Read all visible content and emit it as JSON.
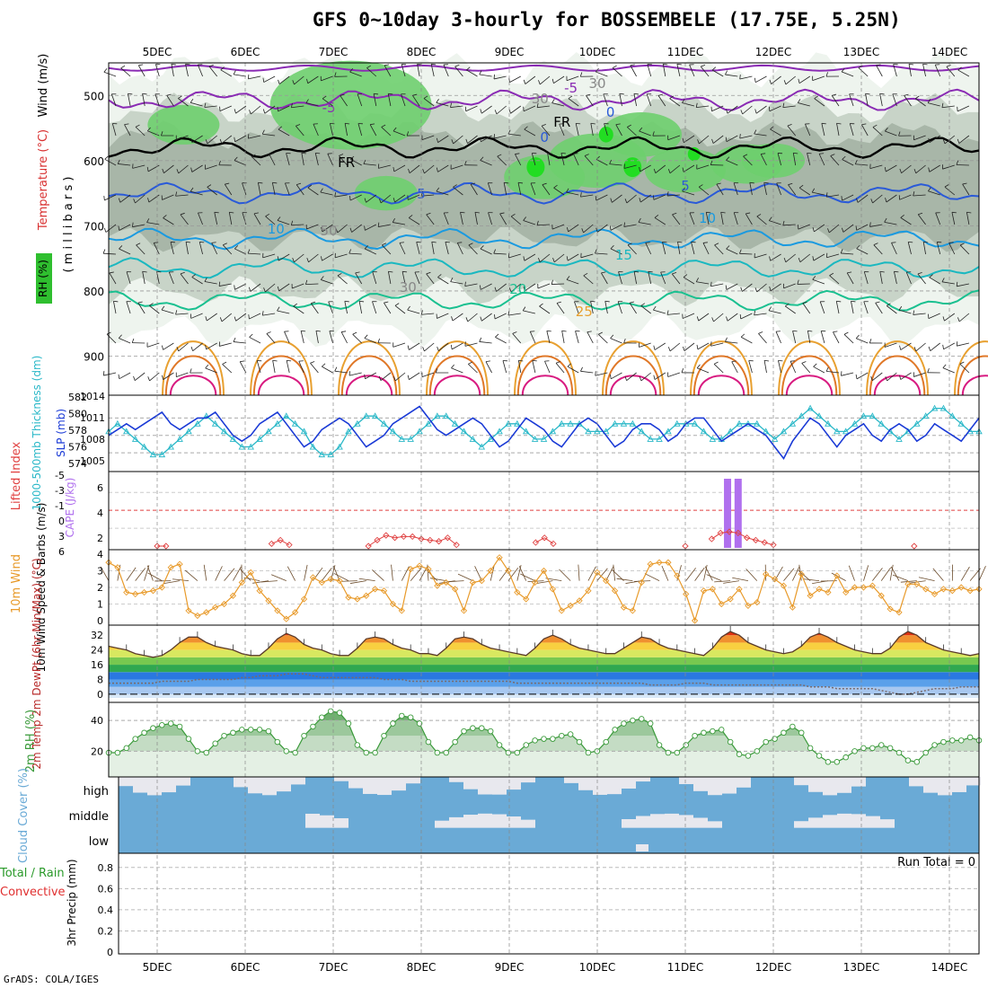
{
  "title": "GFS 0~10day 3-hourly for BOSSEMBELE (17.75E, 5.25N)",
  "credit": "GrADS: COLA/IGES",
  "colors": {
    "rh_light": "#eef4ee",
    "rh_mid": "#c8d4c8",
    "rh_dark": "#a8b6a8",
    "rh_green": "#6ecf6e",
    "rh_bright": "#22dd22",
    "sky": "#6aaad6",
    "sky_gap": "#e8e8ee",
    "slp": "#1a3ad6",
    "thick": "#2ab8c8",
    "cape": "#b070ee",
    "li": "#e04040",
    "wind10": "#e89a2a",
    "rh2m": "#3a9a3a"
  },
  "chart_data": {
    "type": "line",
    "x_labels": [
      "5DEC",
      "6DEC",
      "7DEC",
      "8DEC",
      "9DEC",
      "10DEC",
      "11DEC",
      "12DEC",
      "13DEC",
      "14DEC"
    ],
    "panels": {
      "upper_air": {
        "ylabel_wind": "Wind (m/s)",
        "ylabel_temp": "Temperature (°C)",
        "ylabel_rh": "RH (%)",
        "ylabel_p": "( m i l l i b a r s )",
        "y_ticks": [
          "500",
          "600",
          "700",
          "800",
          "900"
        ],
        "contour_labels": [
          "-5",
          "-5",
          "FR",
          "FR",
          "0",
          "0",
          "5",
          "5",
          "10",
          "10",
          "15",
          "20",
          "25",
          "30",
          "30",
          "50",
          "30"
        ],
        "isotherm_levels_mb": [
          {
            "label": "-5",
            "p": 507
          },
          {
            "label": "0 (FR)",
            "p": 580
          },
          {
            "label": "5",
            "p": 650
          },
          {
            "label": "10",
            "p": 720
          },
          {
            "label": "15",
            "p": 765
          },
          {
            "label": "20",
            "p": 815
          }
        ]
      },
      "slp_thickness": {
        "ylabel_left": "1000-500mb Thickness (dm)",
        "ylabel_right": "SLP (mb)",
        "left_ticks": [
          "582",
          "580",
          "578",
          "576",
          "574"
        ],
        "right_ticks": [
          "1014",
          "1011",
          "1008",
          "1005"
        ],
        "slp_range": [
          1003,
          1014
        ],
        "slp": [
          1008,
          1009,
          1010,
          1009,
          1010,
          1011,
          1012,
          1010,
          1009,
          1010,
          1011,
          1011,
          1012,
          1010,
          1008,
          1007,
          1008,
          1010,
          1011,
          1012,
          1010,
          1008,
          1006,
          1007,
          1009,
          1010,
          1011,
          1010,
          1008,
          1006,
          1007,
          1008,
          1010,
          1011,
          1012,
          1013,
          1011,
          1009,
          1008,
          1009,
          1010,
          1011,
          1010,
          1008,
          1006,
          1007,
          1009,
          1011,
          1010,
          1009,
          1007,
          1006,
          1008,
          1010,
          1011,
          1010,
          1008,
          1006,
          1007,
          1009,
          1010,
          1010,
          1009,
          1007,
          1008,
          1010,
          1011,
          1011,
          1009,
          1007,
          1008,
          1009,
          1010,
          1009,
          1008,
          1006,
          1004,
          1007,
          1009,
          1011,
          1010,
          1008,
          1006,
          1008,
          1009,
          1010,
          1008,
          1007,
          1009,
          1010,
          1009,
          1007,
          1008,
          1010,
          1009,
          1008,
          1007,
          1009,
          1011
        ],
        "thickness_range": [
          573.5,
          582
        ],
        "thickness": [
          578,
          579,
          578,
          577,
          576,
          575,
          575,
          576,
          577,
          578,
          579,
          580,
          579,
          578,
          577,
          576,
          576,
          577,
          578,
          579,
          580,
          579,
          578,
          576,
          575,
          575,
          576,
          578,
          579,
          580,
          580,
          579,
          578,
          577,
          577,
          578,
          579,
          580,
          580,
          579,
          578,
          577,
          576,
          577,
          578,
          579,
          579,
          578,
          577,
          577,
          578,
          579,
          579,
          579,
          578,
          578,
          578,
          579,
          579,
          579,
          578,
          577,
          577,
          578,
          579,
          579,
          579,
          578,
          577,
          577,
          578,
          579,
          579,
          579,
          578,
          577,
          578,
          579,
          580,
          581,
          580,
          579,
          578,
          578,
          579,
          580,
          580,
          579,
          578,
          577,
          578,
          579,
          580,
          581,
          581,
          580,
          579,
          578,
          578
        ],
        "thickness_series_name": "1000-500mb Thickness",
        "slp_series_name": "SLP"
      },
      "cape_li": {
        "ylabel_left": "Lifted Index",
        "ylabel_right": "CAPE (J/kg)",
        "li_ticks": [
          "-5",
          "-3",
          "-1",
          "0",
          "3",
          "6"
        ],
        "cape_ticks": [
          "6",
          "4",
          "2"
        ],
        "cape_bars": [
          {
            "day_index": 6.48,
            "height_frac": 1.0
          },
          {
            "day_index": 6.6,
            "height_frac": 1.0
          }
        ],
        "li_points": [
          [
            0.0,
            6
          ],
          [
            0.1,
            6
          ],
          [
            1.3,
            5.6
          ],
          [
            1.4,
            5
          ],
          [
            1.5,
            5.8
          ],
          [
            2.4,
            6
          ],
          [
            2.5,
            5
          ],
          [
            2.6,
            4.2
          ],
          [
            2.7,
            4.6
          ],
          [
            2.8,
            4.4
          ],
          [
            2.9,
            4.4
          ],
          [
            3.0,
            4.8
          ],
          [
            3.1,
            5
          ],
          [
            3.2,
            5.2
          ],
          [
            3.3,
            4.6
          ],
          [
            3.4,
            5.8
          ],
          [
            4.3,
            5.4
          ],
          [
            4.4,
            4.6
          ],
          [
            4.5,
            5.6
          ],
          [
            6.0,
            6
          ],
          [
            6.3,
            4.8
          ],
          [
            6.4,
            3.8
          ],
          [
            6.5,
            3.6
          ],
          [
            6.6,
            3.8
          ],
          [
            6.7,
            4.6
          ],
          [
            6.8,
            5
          ],
          [
            6.9,
            5.4
          ],
          [
            7.0,
            5.8
          ],
          [
            8.6,
            6
          ]
        ],
        "li_range": [
          -5,
          6
        ],
        "zero_line": "0"
      },
      "wind10m": {
        "ylabel": "10m Wind Speed & Barbs (m/s)",
        "y_ticks": [
          "4",
          "3",
          "2",
          "1",
          "0"
        ],
        "y_range": [
          0,
          4
        ],
        "speed": [
          3.5,
          3.2,
          1.7,
          1.6,
          1.7,
          1.8,
          2.0,
          3.2,
          3.4,
          0.6,
          0.3,
          0.5,
          0.8,
          1.0,
          1.5,
          2.3,
          2.9,
          1.8,
          1.2,
          0.6,
          0.1,
          0.5,
          1.3,
          2.6,
          2.3,
          2.5,
          2.4,
          1.4,
          1.3,
          1.5,
          1.9,
          1.8,
          1.0,
          0.6,
          3.1,
          3.3,
          3.1,
          2.1,
          2.3,
          1.9,
          0.6,
          2.3,
          2.4,
          3.0,
          3.8,
          3.0,
          1.7,
          1.3,
          2.3,
          3.0,
          1.9,
          0.6,
          0.9,
          1.2,
          1.8,
          2.9,
          2.4,
          1.8,
          0.8,
          0.6,
          2.3,
          3.4,
          3.5,
          3.5,
          2.7,
          1.6,
          0.0,
          1.8,
          1.9,
          1.0,
          1.3,
          1.9,
          0.9,
          1.1,
          2.8,
          2.5,
          2.1,
          0.8,
          2.8,
          1.5,
          1.9,
          1.7,
          2.7,
          1.7,
          2.0,
          2.0,
          2.1,
          1.5,
          0.7,
          0.5,
          2.2,
          2.2,
          1.9,
          1.6,
          1.9,
          1.8,
          2.0,
          1.8,
          1.9
        ]
      },
      "temp2m": {
        "ylabel": "2m Temp 2m DewPt (6hr Min/Max) (°C)",
        "y_ticks": [
          "32",
          "24",
          "16",
          "8",
          "0"
        ],
        "y_range": [
          -2,
          36
        ],
        "temp": [
          26,
          25,
          24,
          22,
          21,
          20,
          21,
          24,
          28,
          31,
          31,
          28,
          26,
          25,
          24,
          22,
          21,
          21,
          25,
          30,
          33,
          31,
          27,
          25,
          24,
          22,
          21,
          21,
          25,
          30,
          31,
          30,
          27,
          25,
          24,
          22,
          22,
          21,
          25,
          30,
          31,
          30,
          27,
          25,
          24,
          23,
          22,
          21,
          25,
          30,
          32,
          30,
          27,
          25,
          24,
          23,
          22,
          22,
          25,
          28,
          31,
          30,
          27,
          25,
          24,
          23,
          22,
          21,
          25,
          31,
          34,
          32,
          28,
          26,
          24,
          23,
          22,
          23,
          26,
          31,
          33,
          31,
          28,
          26,
          24,
          23,
          22,
          22,
          25,
          31,
          34,
          32,
          28,
          26,
          24,
          23,
          22,
          21,
          22
        ],
        "dewpt": [
          6,
          6,
          6,
          6,
          6,
          6,
          7,
          7,
          7,
          7,
          8,
          8,
          8,
          8,
          8,
          9,
          9,
          10,
          10,
          10,
          11,
          11,
          11,
          10,
          9,
          9,
          9,
          9,
          9,
          9,
          9,
          8,
          8,
          8,
          7,
          7,
          7,
          7,
          7,
          7,
          7,
          7,
          7,
          7,
          7,
          7,
          6,
          6,
          6,
          6,
          6,
          6,
          6,
          6,
          6,
          6,
          6,
          6,
          6,
          6,
          6,
          5,
          5,
          5,
          5,
          6,
          6,
          6,
          5,
          5,
          5,
          5,
          5,
          5,
          5,
          5,
          5,
          5,
          5,
          4,
          4,
          4,
          3,
          3,
          3,
          3,
          3,
          2,
          1,
          0,
          0,
          1,
          2,
          3,
          3,
          3,
          4,
          4,
          4
        ]
      },
      "rh2m": {
        "ylabel": "2m RH (%)",
        "y_ticks": [
          "40",
          "20"
        ],
        "y_range": [
          5,
          50
        ],
        "rh": [
          19,
          19,
          22,
          28,
          32,
          35,
          37,
          38,
          36,
          28,
          20,
          19,
          25,
          30,
          32,
          34,
          34,
          34,
          33,
          26,
          20,
          19,
          30,
          36,
          42,
          46,
          45,
          38,
          24,
          19,
          19,
          30,
          38,
          43,
          42,
          38,
          26,
          19,
          19,
          26,
          33,
          35,
          35,
          33,
          24,
          19,
          19,
          24,
          27,
          28,
          28,
          30,
          31,
          26,
          19,
          20,
          26,
          34,
          38,
          40,
          41,
          38,
          24,
          19,
          19,
          24,
          30,
          32,
          33,
          34,
          26,
          18,
          17,
          20,
          26,
          28,
          32,
          36,
          32,
          22,
          17,
          13,
          13,
          16,
          20,
          22,
          22,
          24,
          22,
          19,
          14,
          13,
          19,
          24,
          26,
          27,
          27,
          29,
          27
        ]
      },
      "cloud": {
        "ylabel": "Cloud Cover (%)",
        "levels": [
          "high",
          "middle",
          "low"
        ]
      },
      "precip": {
        "ylabel_a": "Total / Rain",
        "ylabel_b": "Convective",
        "ylabel_c": "3hr Precip (mm)",
        "y_ticks": [
          "0.8",
          "0.6",
          "0.4",
          "0.2",
          "0"
        ],
        "y_range": [
          0,
          0.9
        ],
        "run_total_label": "Run Total = 0"
      }
    }
  }
}
